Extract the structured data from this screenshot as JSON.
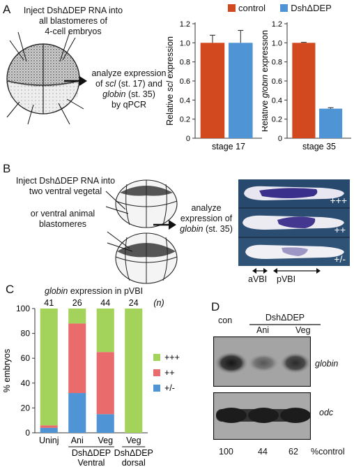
{
  "panels": {
    "a": "A",
    "b": "B",
    "c": "C",
    "d": "D"
  },
  "panel_a": {
    "inject_text": [
      "Inject DshΔDEP RNA into",
      "all blastomeres of",
      "4-cell embryos"
    ],
    "analyze_text": [
      "analyze expression",
      "of ",
      "scl",
      " (st. 17) and",
      "globin",
      " (st. 35)",
      "by qPCR"
    ],
    "legend": [
      {
        "name": "control",
        "color": "#d2491f"
      },
      {
        "name": "DshΔDEP",
        "color": "#4f95d6"
      }
    ]
  },
  "panel_b": {
    "inject_text": [
      "Inject DshΔDEP RNA into",
      "two ventral vegetal"
    ],
    "or_text": [
      "or  ventral animal",
      "blastomeres"
    ],
    "analyze_text": [
      "analyze",
      "expression of",
      "globin",
      " (st. 35)"
    ],
    "embryo_labels": [
      "+++",
      "++",
      "+/-"
    ],
    "region_labels": {
      "avbi": "aVBI",
      "pvbi": "pVBI"
    }
  },
  "panel_c": {
    "title_italic": "globin",
    "title_rest": " expression in pVBI",
    "n_label": "(n)"
  },
  "panel_d": {
    "header_con": "con",
    "header_group": "DshΔDEP",
    "lane_labels": [
      "Ani",
      "Veg"
    ],
    "blot_labels": [
      "globin",
      "odc"
    ],
    "percent_values": [
      "100",
      "44",
      "62"
    ],
    "percent_label": "%control"
  },
  "chart_data": [
    {
      "type": "bar",
      "categories": [
        "stage 17"
      ],
      "series": [
        {
          "name": "control",
          "values": [
            1.0
          ],
          "errors": [
            0.08
          ]
        },
        {
          "name": "DshΔDEP",
          "values": [
            1.0
          ],
          "errors": [
            0.13
          ]
        }
      ],
      "ylabel_pre": "Relative ",
      "ylabel_italic": "scl",
      "ylabel_post": " expression",
      "ylim": [
        0,
        1.2
      ],
      "yticks": [
        "0",
        "0.2",
        "0.4",
        "0.6",
        "0.8",
        "1.0",
        "1.2"
      ],
      "color_control": "#d2491f",
      "color_dsh": "#4f95d6"
    },
    {
      "type": "bar",
      "categories": [
        "stage 35"
      ],
      "series": [
        {
          "name": "control",
          "values": [
            1.0
          ],
          "errors": [
            0.005
          ]
        },
        {
          "name": "DshΔDEP",
          "values": [
            0.31
          ],
          "errors": [
            0.01
          ]
        }
      ],
      "ylabel_pre": "Relative ",
      "ylabel_italic": "globin",
      "ylabel_post": " expression",
      "ylim": [
        0,
        1.2
      ],
      "yticks": [
        "0",
        "0.2",
        "0.4",
        "0.6",
        "0.8",
        "1.0",
        "1.2"
      ],
      "color_control": "#d2491f",
      "color_dsh": "#4f95d6"
    },
    {
      "type": "bar",
      "stacked": true,
      "categories": [
        "Uninj",
        "Ani",
        "Veg",
        "Veg"
      ],
      "n_values": [
        "41",
        "26",
        "44",
        "24"
      ],
      "group_labels": [
        "DshΔDEP",
        "Ventral",
        "DshΔDEP",
        "dorsal"
      ],
      "series": [
        {
          "name": "+/-",
          "values": [
            4,
            32,
            15,
            0
          ],
          "color": "#4f95d6"
        },
        {
          "name": "++",
          "values": [
            2,
            56,
            50,
            0
          ],
          "color": "#ea6b6b"
        },
        {
          "name": "+++",
          "values": [
            94,
            12,
            35,
            100
          ],
          "color": "#a3d35a"
        }
      ],
      "ylabel": "% embryos",
      "ylim": [
        0,
        100
      ],
      "yticks": [
        "0",
        "20",
        "40",
        "60",
        "80",
        "100"
      ]
    }
  ]
}
